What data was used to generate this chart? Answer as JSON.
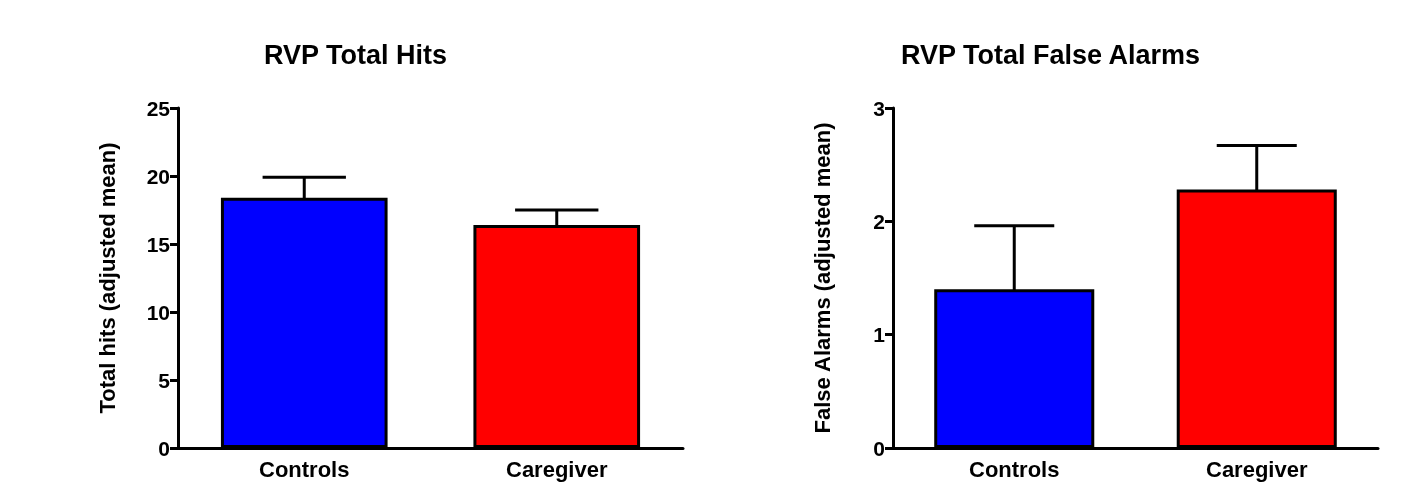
{
  "chart_data": [
    {
      "type": "bar",
      "title": "RVP Total Hits",
      "ylabel": "Total hits (adjusted mean)",
      "categories": [
        "Controls",
        "Caregiver"
      ],
      "colors": [
        "#0000ff",
        "#ff0000"
      ],
      "values": [
        18.4,
        16.4
      ],
      "errors": [
        1.5,
        1.1
      ],
      "ylim": [
        0,
        25
      ],
      "yticks": [
        0,
        5,
        10,
        15,
        20,
        25
      ],
      "grid": false
    },
    {
      "type": "bar",
      "title": "RVP Total False Alarms",
      "ylabel": "False Alarms (adjusted mean)",
      "categories": [
        "Controls",
        "Caregiver"
      ],
      "colors": [
        "#0000ff",
        "#ff0000"
      ],
      "values": [
        1.4,
        2.28
      ],
      "errors": [
        0.56,
        0.39
      ],
      "ylim": [
        0,
        3
      ],
      "yticks": [
        0,
        1,
        2,
        3
      ],
      "grid": false
    }
  ]
}
